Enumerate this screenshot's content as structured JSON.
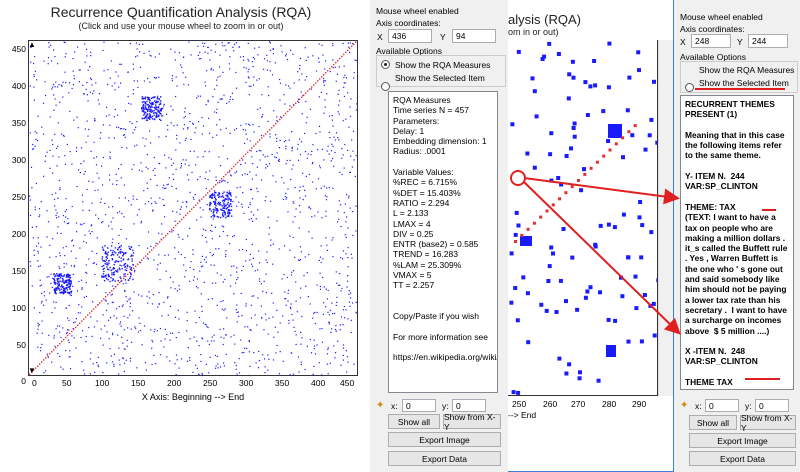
{
  "left": {
    "title": "Recurrence Quantification Analysis (RQA)",
    "subtitle": "(Click and use your mouse wheel to zoom in or out)",
    "x_axis_label": "X Axis: Beginning --> End",
    "x_ticks": [
      "0",
      "50",
      "100",
      "150",
      "200",
      "250",
      "300",
      "350",
      "400",
      "450"
    ],
    "y_ticks": [
      "450",
      "400",
      "350",
      "300",
      "250",
      "200",
      "150",
      "100",
      "50",
      "0"
    ]
  },
  "middle": {
    "mouse_wheel": "Mouse wheel enabled",
    "axis_coords_label": "Axis coordinates:",
    "x_label": "X",
    "x_value": "436",
    "y_label": "Y",
    "y_value": "94",
    "options_label": "Available Options",
    "option_measures": "Show the RQA Measures",
    "option_selected": "Show the Selected Item",
    "measures_text": "RQA Measures\nTime series N = 457\nParameters:\nDelay: 1\nEmbedding dimension: 1\nRadius: .0001\n\nVariable Values:\n%REC = 6.715%\n%DET = 15.403%\nRATIO = 2.294\nL = 2.133\nLMAX = 4\nDIV = 0.25\nENTR (base2) = 0.585\nTREND = 16.283\n%LAM = 25.309%\nVMAX = 5\nTT = 2.257\n\n\nCopy/Paste if you wish\n\nFor more information see\n\nhttps://en.wikipedia.org/wiki/Recurrence_quantification_analysis",
    "zoom_x_label": "x:",
    "zoom_x": "0",
    "zoom_y_label": "y:",
    "zoom_y": "0",
    "show_all": "Show all",
    "show_from_xy": "Show from X-Y",
    "export_image": "Export Image",
    "export_data": "Export Data",
    "zoom_title": "alysis (RQA)",
    "zoom_subtitle": "om in or out)",
    "zoom_x_ticks": [
      "250",
      "260",
      "270",
      "280",
      "290"
    ],
    "zoom_x_axis": "--> End"
  },
  "right": {
    "mouse_wheel": "Mouse wheel enabled",
    "axis_coords_label": "Axis coordinates:",
    "x_label": "X",
    "x_value": "248",
    "y_label": "Y",
    "y_value": "244",
    "options_label": "Available Options",
    "option_measures": "Show the RQA Measures",
    "option_selected": "Show the Selected Item",
    "item_text": "RECURRENT THEMES PRESENT (1)\n\nMeaning that in this case the following items refer to the same theme.\n\nY- ITEM N.  244\nVAR:SP_CLINTON\n\nTHEME: TAX\n(TEXT: I want to have a tax on people who are making a million dollars . it_s called the Buffett rule . Yes , Warren Buffett is the one who ' s gone out and said somebody like him should not be paying a lower tax rate than his secretary .  I want to have a surcharge on incomes above  $ 5 million ....)\n\nX -ITEM N.  248\nVAR:SP_CLINTON\n\nTHEME TAX\n(TEXT: And we_re going to make sure that nobody ,  no corporation ,  and no individual can get away without paying his fair share",
    "zoom_x_label": "x:",
    "zoom_x": "0",
    "zoom_y_label": "y:",
    "zoom_y": "0",
    "show_all": "Show all",
    "show_from_xy": "Show from X-Y",
    "export_image": "Export Image",
    "export_data": "Export Data"
  },
  "colors": {
    "recurrence_point": "#1a1aff",
    "diagonal": "#e03030",
    "annotation": "#e02020",
    "panel_bg": "#f0f0f0",
    "window_border": "#3c7fd6"
  }
}
